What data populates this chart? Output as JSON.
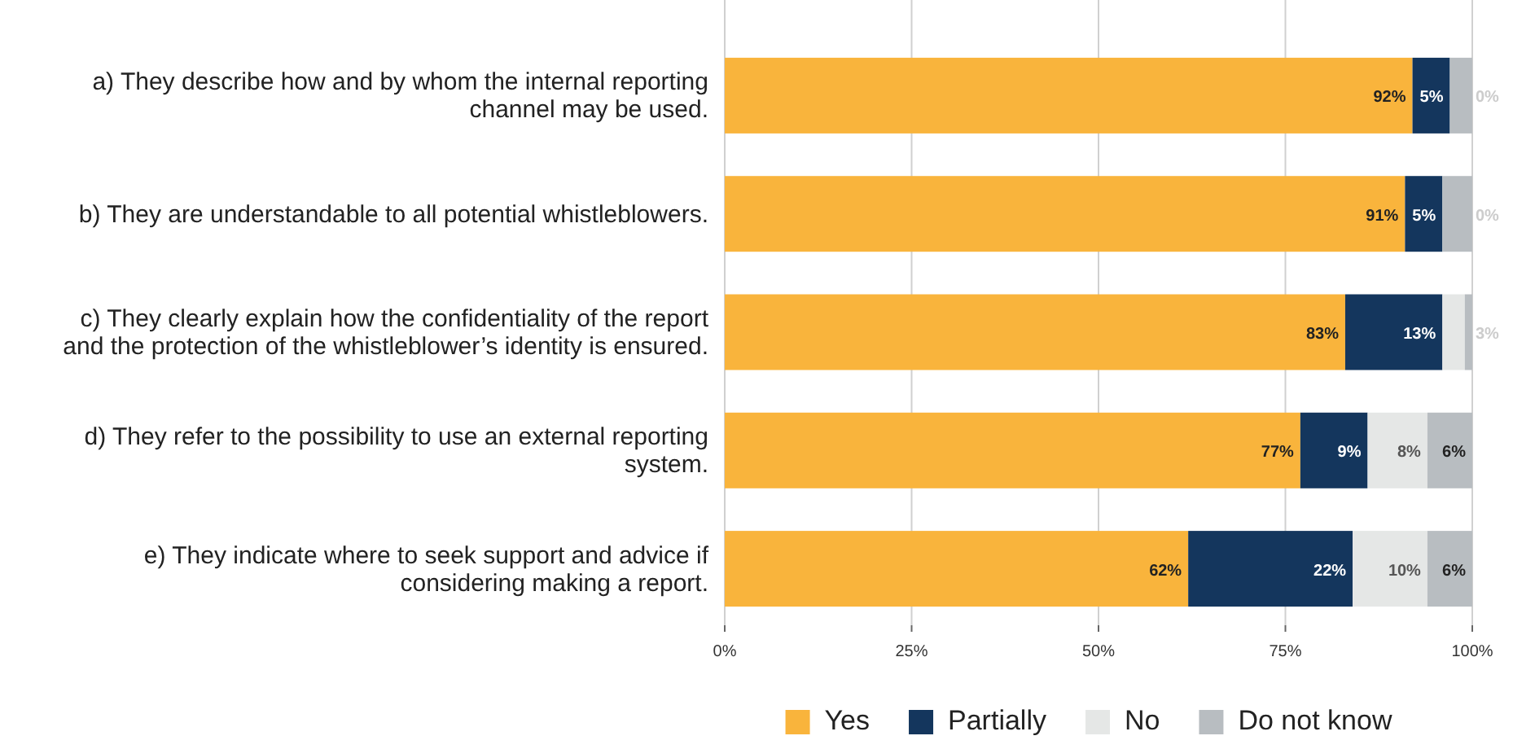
{
  "chart_data": {
    "type": "bar",
    "orientation": "horizontal",
    "stacked": true,
    "categories": [
      "a) They describe how and by whom the internal reporting channel may be used.",
      "b) They are understandable to all potential whistleblowers.",
      "c) They clearly explain how the confidentiality of the report and the protection of the whistleblower’s identity is ensured.",
      "d) They refer to the possibility to use an external reporting system.",
      "e) They indicate where to seek support and advice if considering making a report."
    ],
    "series": [
      {
        "name": "Yes",
        "color": "#f9b43c",
        "values": [
          92,
          91,
          83,
          77,
          62
        ],
        "value_labels": [
          "92%",
          "91%",
          "83%",
          "77%",
          "62%"
        ]
      },
      {
        "name": "Partially",
        "color": "#14365d",
        "values": [
          5,
          5,
          13,
          9,
          22
        ],
        "value_labels": [
          "5%",
          "5%",
          "13%",
          "9%",
          "22%"
        ]
      },
      {
        "name": "No",
        "color": "#e5e7e6",
        "values": [
          0,
          0,
          3,
          8,
          10
        ],
        "value_labels": [
          "0%",
          "0%",
          "3%",
          "8%",
          "10%"
        ]
      },
      {
        "name": "Do not know",
        "color": "#b8bdc1",
        "values": [
          3,
          4,
          1,
          6,
          6
        ],
        "value_labels": [
          null,
          null,
          null,
          "6%",
          "6%"
        ]
      }
    ],
    "xlim": [
      0,
      100
    ],
    "xticks": [
      {
        "value": 0,
        "label": "0%"
      },
      {
        "value": 25,
        "label": "25%"
      },
      {
        "value": 50,
        "label": "50%"
      },
      {
        "value": 75,
        "label": "75%"
      },
      {
        "value": 100,
        "label": "100%"
      }
    ],
    "grid": "x",
    "legend": "bottom"
  }
}
